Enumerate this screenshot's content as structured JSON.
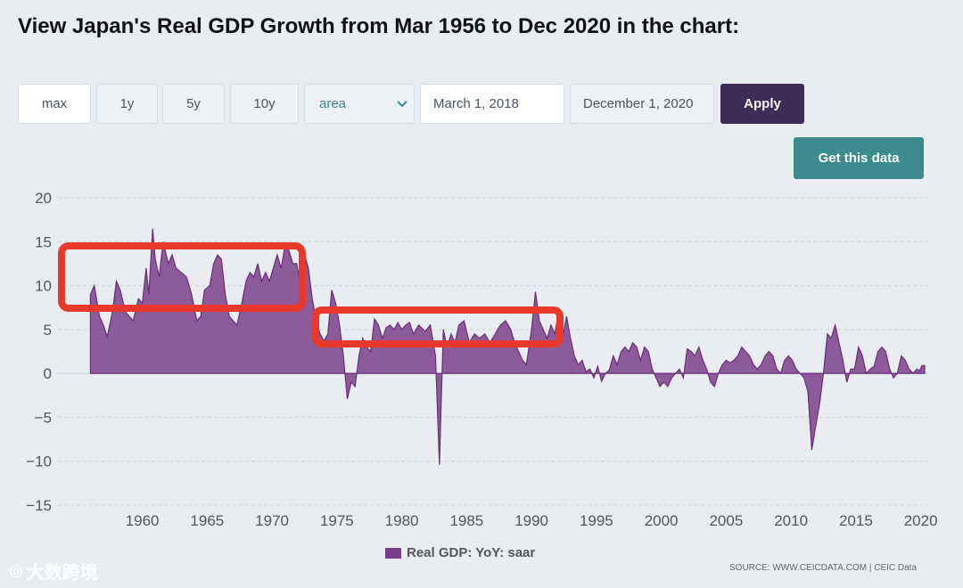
{
  "page_title": "View Japan's Real GDP Growth from Mar 1956 to Dec 2020 in the chart:",
  "controls": {
    "range_buttons": [
      "max",
      "1y",
      "5y",
      "10y"
    ],
    "chart_type": "area",
    "start_date": "March 1, 2018",
    "end_date": "December 1, 2020",
    "apply_label": "Apply",
    "get_data_label": "Get this data"
  },
  "source_text": "SOURCE: WWW.CEICDATA.COM | CEIC Data",
  "watermark": "大数跨境",
  "colors": {
    "area_fill": "#7b3e8a",
    "highlight_box": "#e8392c",
    "apply_bg": "#3e2b57",
    "get_data_bg": "#3c8c8d"
  },
  "chart_data": {
    "type": "area",
    "series_name": "Real GDP: YoY: saar",
    "ylim": [
      -15,
      20
    ],
    "y_ticks": [
      20,
      15,
      10,
      5,
      0,
      -5,
      -10,
      -15
    ],
    "xlim": [
      1953.5,
      2020.3
    ],
    "x_ticks": [
      1960,
      1965,
      1970,
      1975,
      1980,
      1985,
      1990,
      1995,
      2000,
      2005,
      2010,
      2015,
      2020
    ],
    "points": [
      [
        1956.0,
        9.0
      ],
      [
        1956.3,
        10.0
      ],
      [
        1956.7,
        6.5
      ],
      [
        1957.0,
        5.5
      ],
      [
        1957.3,
        4.2
      ],
      [
        1957.7,
        7.0
      ],
      [
        1958.0,
        10.5
      ],
      [
        1958.3,
        9.5
      ],
      [
        1958.7,
        7.0
      ],
      [
        1959.0,
        6.5
      ],
      [
        1959.3,
        6.0
      ],
      [
        1959.7,
        8.5
      ],
      [
        1960.0,
        8.0
      ],
      [
        1960.3,
        12.0
      ],
      [
        1960.5,
        9.0
      ],
      [
        1960.8,
        16.5
      ],
      [
        1961.0,
        13.0
      ],
      [
        1961.3,
        11.0
      ],
      [
        1961.6,
        15.0
      ],
      [
        1962.0,
        12.5
      ],
      [
        1962.3,
        13.5
      ],
      [
        1962.6,
        12.0
      ],
      [
        1963.0,
        11.5
      ],
      [
        1963.4,
        11.0
      ],
      [
        1963.8,
        9.0
      ],
      [
        1964.2,
        6.0
      ],
      [
        1964.5,
        6.5
      ],
      [
        1964.8,
        9.5
      ],
      [
        1965.2,
        10.0
      ],
      [
        1965.5,
        12.5
      ],
      [
        1965.8,
        13.5
      ],
      [
        1966.1,
        13.0
      ],
      [
        1966.4,
        9.0
      ],
      [
        1966.7,
        6.5
      ],
      [
        1967.0,
        6.0
      ],
      [
        1967.3,
        5.5
      ],
      [
        1967.6,
        7.5
      ],
      [
        1968.0,
        10.5
      ],
      [
        1968.3,
        11.5
      ],
      [
        1968.6,
        11.0
      ],
      [
        1968.9,
        12.5
      ],
      [
        1969.2,
        10.5
      ],
      [
        1969.5,
        11.5
      ],
      [
        1969.8,
        10.5
      ],
      [
        1970.1,
        12.0
      ],
      [
        1970.4,
        13.5
      ],
      [
        1970.7,
        12.0
      ],
      [
        1971.0,
        14.5
      ],
      [
        1971.3,
        14.0
      ],
      [
        1971.6,
        12.5
      ],
      [
        1971.9,
        12.5
      ],
      [
        1972.2,
        10.0
      ],
      [
        1972.5,
        13.5
      ],
      [
        1972.8,
        12.0
      ],
      [
        1973.1,
        8.5
      ],
      [
        1973.4,
        6.0
      ],
      [
        1973.7,
        4.5
      ],
      [
        1974.0,
        3.7
      ],
      [
        1974.3,
        4.5
      ],
      [
        1974.6,
        9.5
      ],
      [
        1974.9,
        8.0
      ],
      [
        1975.2,
        5.5
      ],
      [
        1975.5,
        2.0
      ],
      [
        1975.8,
        -2.9
      ],
      [
        1976.1,
        -1.0
      ],
      [
        1976.4,
        -1.5
      ],
      [
        1976.7,
        2.0
      ],
      [
        1977.0,
        4.0
      ],
      [
        1977.3,
        3.0
      ],
      [
        1977.6,
        2.5
      ],
      [
        1977.9,
        6.2
      ],
      [
        1978.2,
        5.5
      ],
      [
        1978.5,
        4.0
      ],
      [
        1978.8,
        5.2
      ],
      [
        1979.1,
        5.5
      ],
      [
        1979.4,
        5.0
      ],
      [
        1979.7,
        5.8
      ],
      [
        1980.0,
        5.0
      ],
      [
        1980.3,
        5.5
      ],
      [
        1980.6,
        5.8
      ],
      [
        1980.9,
        4.5
      ],
      [
        1981.3,
        5.5
      ],
      [
        1981.8,
        4.8
      ],
      [
        1982.2,
        5.5
      ],
      [
        1982.6,
        2.0
      ],
      [
        1982.9,
        -10.4
      ],
      [
        1983.2,
        5.0
      ],
      [
        1983.5,
        3.0
      ],
      [
        1983.8,
        4.5
      ],
      [
        1984.1,
        3.5
      ],
      [
        1984.4,
        5.5
      ],
      [
        1984.8,
        6.0
      ],
      [
        1985.2,
        3.5
      ],
      [
        1985.6,
        4.5
      ],
      [
        1986.0,
        4.0
      ],
      [
        1986.4,
        4.5
      ],
      [
        1986.8,
        3.5
      ],
      [
        1987.2,
        4.5
      ],
      [
        1987.6,
        5.5
      ],
      [
        1988.0,
        6.0
      ],
      [
        1988.4,
        5.0
      ],
      [
        1988.7,
        3.5
      ],
      [
        1989.0,
        2.5
      ],
      [
        1989.3,
        1.5
      ],
      [
        1989.6,
        1.0
      ],
      [
        1990.0,
        5.0
      ],
      [
        1990.3,
        9.3
      ],
      [
        1990.6,
        6.0
      ],
      [
        1990.9,
        5.0
      ],
      [
        1991.2,
        4.0
      ],
      [
        1991.5,
        5.5
      ],
      [
        1991.8,
        4.5
      ],
      [
        1992.1,
        7.2
      ],
      [
        1992.4,
        4.0
      ],
      [
        1992.7,
        6.5
      ],
      [
        1993.0,
        4.0
      ],
      [
        1993.3,
        2.0
      ],
      [
        1993.6,
        1.0
      ],
      [
        1993.9,
        1.5
      ],
      [
        1994.2,
        0.2
      ],
      [
        1994.5,
        0.5
      ],
      [
        1994.8,
        -0.5
      ],
      [
        1995.1,
        0.8
      ],
      [
        1995.4,
        -0.9
      ],
      [
        1995.7,
        0.0
      ],
      [
        1996.0,
        0.4
      ],
      [
        1996.3,
        2.0
      ],
      [
        1996.6,
        1.0
      ],
      [
        1996.9,
        2.5
      ],
      [
        1997.2,
        3.0
      ],
      [
        1997.5,
        2.5
      ],
      [
        1997.8,
        3.5
      ],
      [
        1998.1,
        3.0
      ],
      [
        1998.4,
        1.5
      ],
      [
        1998.7,
        3.0
      ],
      [
        1999.0,
        2.5
      ],
      [
        1999.3,
        0.5
      ],
      [
        1999.6,
        -0.5
      ],
      [
        1999.9,
        -1.5
      ],
      [
        2000.2,
        -1.0
      ],
      [
        2000.5,
        -1.5
      ],
      [
        2000.8,
        -0.5
      ],
      [
        2001.1,
        0.0
      ],
      [
        2001.4,
        0.5
      ],
      [
        2001.7,
        -0.5
      ],
      [
        2002.0,
        2.8
      ],
      [
        2002.3,
        2.5
      ],
      [
        2002.6,
        2.0
      ],
      [
        2002.9,
        3.0
      ],
      [
        2003.2,
        1.5
      ],
      [
        2003.5,
        0.5
      ],
      [
        2003.8,
        -1.0
      ],
      [
        2004.1,
        -1.5
      ],
      [
        2004.4,
        0.0
      ],
      [
        2004.7,
        1.0
      ],
      [
        2005.0,
        1.5
      ],
      [
        2005.3,
        1.2
      ],
      [
        2005.6,
        1.5
      ],
      [
        2005.9,
        2.0
      ],
      [
        2006.2,
        3.0
      ],
      [
        2006.5,
        2.5
      ],
      [
        2006.8,
        2.0
      ],
      [
        2007.1,
        1.0
      ],
      [
        2007.4,
        0.5
      ],
      [
        2007.7,
        1.0
      ],
      [
        2008.0,
        2.0
      ],
      [
        2008.3,
        2.5
      ],
      [
        2008.6,
        2.0
      ],
      [
        2008.9,
        0.5
      ],
      [
        2009.2,
        0.0
      ],
      [
        2009.5,
        1.5
      ],
      [
        2009.8,
        2.0
      ],
      [
        2010.1,
        1.5
      ],
      [
        2010.4,
        0.5
      ],
      [
        2010.7,
        0.0
      ],
      [
        2011.0,
        -0.5
      ],
      [
        2011.3,
        -2.0
      ],
      [
        2011.6,
        -8.7
      ],
      [
        2011.9,
        -6.0
      ],
      [
        2012.2,
        -3.5
      ],
      [
        2012.5,
        0.0
      ],
      [
        2012.8,
        4.5
      ],
      [
        2013.1,
        4.0
      ],
      [
        2013.4,
        5.5
      ],
      [
        2013.7,
        3.5
      ],
      [
        2014.0,
        1.5
      ],
      [
        2014.3,
        -1.0
      ],
      [
        2014.6,
        0.5
      ],
      [
        2014.9,
        0.5
      ],
      [
        2015.2,
        3.0
      ],
      [
        2015.5,
        2.0
      ],
      [
        2015.8,
        0.0
      ],
      [
        2016.1,
        0.5
      ],
      [
        2016.4,
        0.8
      ],
      [
        2016.7,
        2.5
      ],
      [
        2017.0,
        3.0
      ],
      [
        2017.3,
        2.5
      ],
      [
        2017.6,
        0.5
      ],
      [
        2017.9,
        -0.5
      ],
      [
        2018.2,
        0.0
      ],
      [
        2018.5,
        2.0
      ],
      [
        2018.8,
        1.5
      ],
      [
        2019.1,
        0.5
      ],
      [
        2019.4,
        0.0
      ],
      [
        2019.7,
        0.5
      ],
      [
        2019.9,
        0.3
      ],
      [
        2020.1,
        0.9
      ],
      [
        2020.3,
        0.9
      ]
    ]
  }
}
